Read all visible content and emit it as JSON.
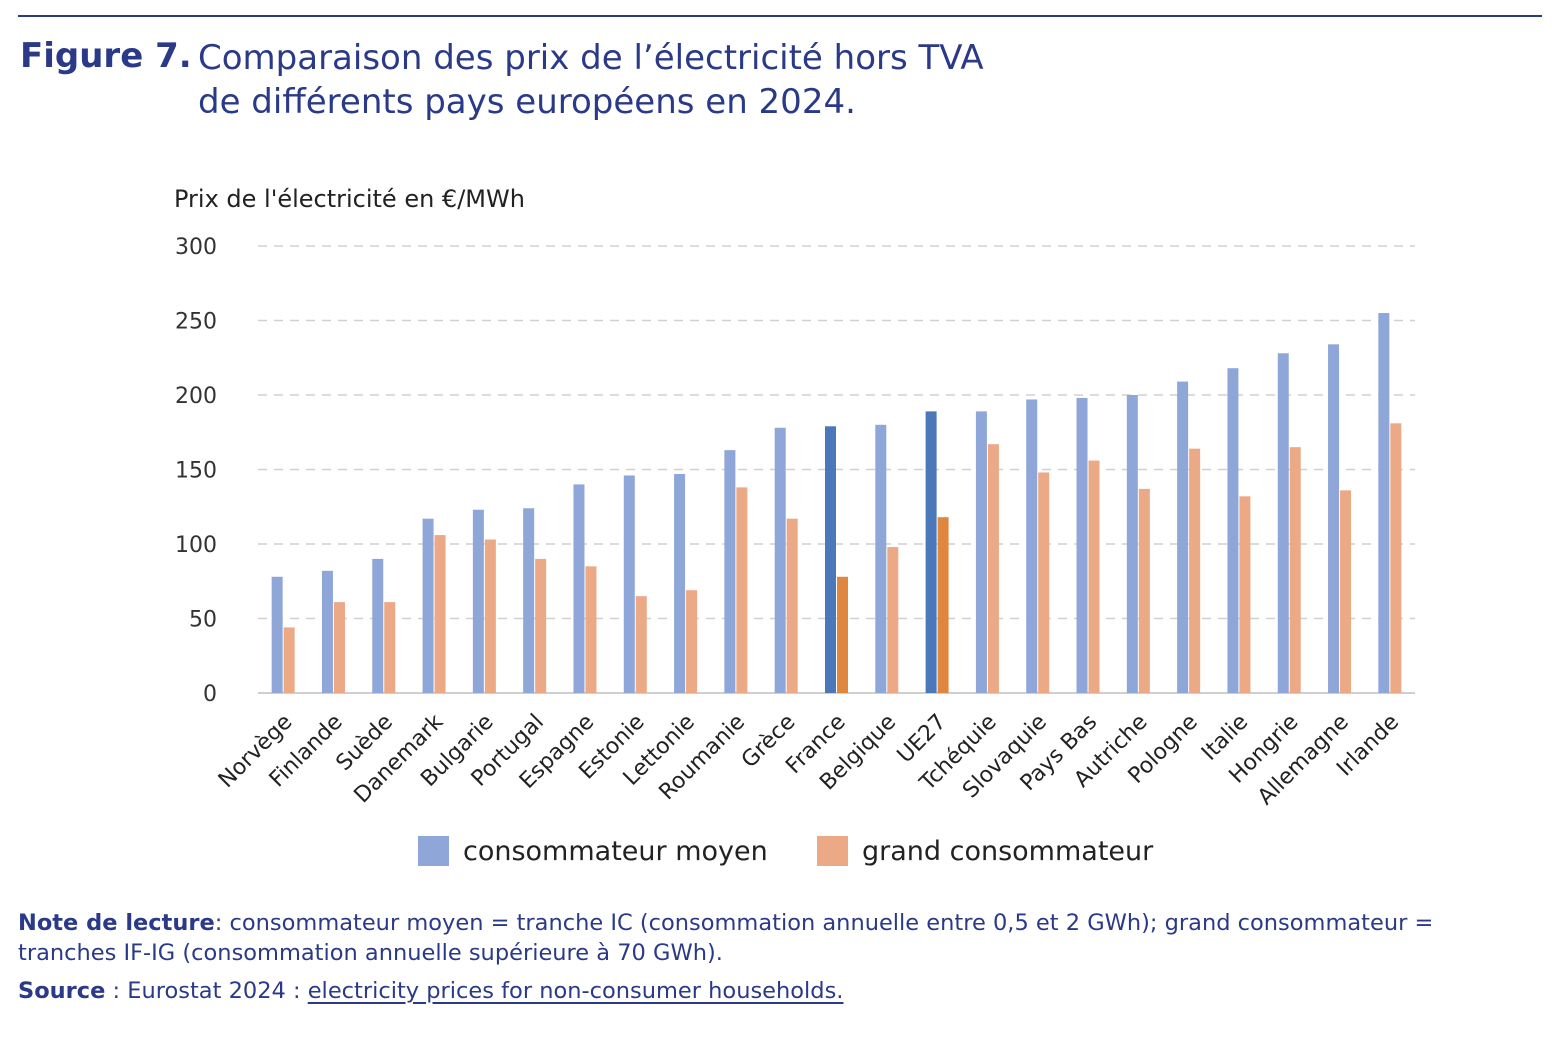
{
  "figure": {
    "label": "Figure 7.",
    "title_line1": "Comparaison des prix de l’électricité hors TVA",
    "title_line2": "de différents pays européens en 2024."
  },
  "note": {
    "label": "Note de lecture",
    "text": ": consommateur moyen = tranche IC (consommation annuelle entre 0,5 et 2 GWh); grand consommateur = tranches IF-IG (consommation annuelle supérieure à 70 GWh)."
  },
  "source": {
    "label": "Source",
    "text": " : Eurostat 2024 : ",
    "link": "electricity prices for non-consumer households."
  },
  "chart_data": {
    "type": "bar",
    "ylabel": "Prix de l'électricité en €/MWh",
    "ylim": [
      0,
      300
    ],
    "yticks": [
      0,
      50,
      100,
      150,
      200,
      250,
      300
    ],
    "grid": true,
    "legend_position": "bottom",
    "categories": [
      "Norvège",
      "Finlande",
      "Suède",
      "Danemark",
      "Bulgarie",
      "Portugal",
      "Espagne",
      "Estonie",
      "Lettonie",
      "Roumanie",
      "Grèce",
      "France",
      "Belgique",
      "UE27",
      "Tchéquie",
      "Slovaquie",
      "Pays Bas",
      "Autriche",
      "Pologne",
      "Italie",
      "Hongrie",
      "Allemagne",
      "Irlande"
    ],
    "series": [
      {
        "name": "consommateur moyen",
        "color": "#8fa6d8",
        "highlight_color": "#4a78b8",
        "values": [
          78,
          82,
          90,
          117,
          123,
          124,
          140,
          146,
          147,
          163,
          178,
          179,
          180,
          189,
          189,
          197,
          198,
          200,
          209,
          218,
          228,
          234,
          255
        ]
      },
      {
        "name": "grand consommateur",
        "color": "#eba986",
        "highlight_color": "#e0873f",
        "values": [
          44,
          61,
          61,
          106,
          103,
          90,
          85,
          65,
          69,
          138,
          117,
          78,
          98,
          118,
          167,
          148,
          156,
          137,
          164,
          132,
          165,
          136,
          181
        ]
      }
    ],
    "highlighted_categories": [
      "France",
      "UE27"
    ]
  }
}
